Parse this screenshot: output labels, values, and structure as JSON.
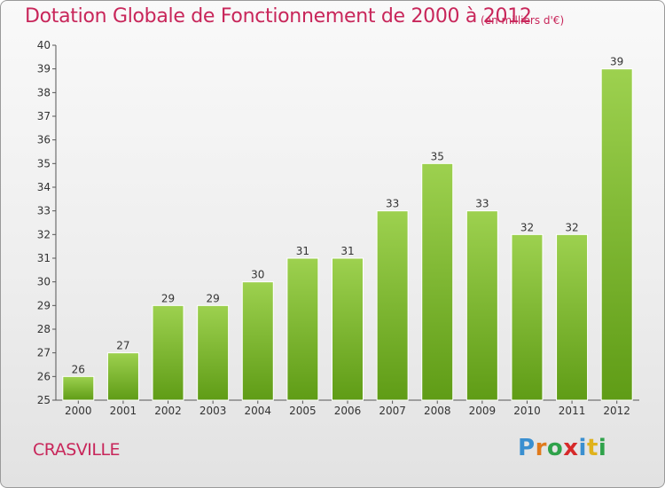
{
  "chart_data": {
    "type": "bar",
    "title": "Dotation Globale de Fonctionnement de 2000 à 2012",
    "subtitle": "(en milliers d'€)",
    "categories": [
      "2000",
      "2001",
      "2002",
      "2003",
      "2004",
      "2005",
      "2006",
      "2007",
      "2008",
      "2009",
      "2010",
      "2011",
      "2012"
    ],
    "values": [
      26,
      27,
      29,
      29,
      30,
      31,
      31,
      33,
      35,
      33,
      32,
      32,
      39
    ],
    "ylim": [
      25,
      40
    ],
    "yticks": [
      25,
      26,
      27,
      28,
      29,
      30,
      31,
      32,
      33,
      34,
      35,
      36,
      37,
      38,
      39,
      40
    ],
    "xlabel": "",
    "ylabel": "",
    "grid": false,
    "bar_color_top": "#9dd14f",
    "bar_color_bottom": "#5f9c16"
  },
  "footer": {
    "commune": "CRASVILLE",
    "brand": "Proxiti"
  },
  "colors": {
    "title": "#c8265a",
    "axis": "#555555"
  }
}
